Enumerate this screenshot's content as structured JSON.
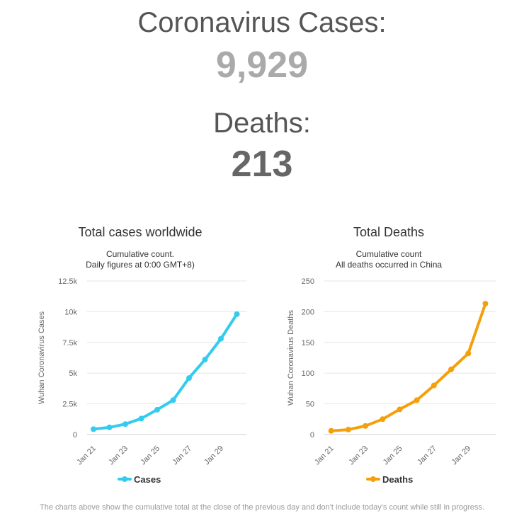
{
  "header": {
    "cases_label": "Coronavirus Cases:",
    "cases_value": "9,929",
    "deaths_label": "Deaths:",
    "deaths_value": "213"
  },
  "footnote": "The charts above show the cumulative total at the close of the previous day and don't include today's count while still in progress.",
  "chart_data": [
    {
      "type": "line",
      "title": "Total cases worldwide",
      "subtitle": [
        "Cumulative count.",
        "Daily figures at 0:00 GMT+8)"
      ],
      "xlabel": "",
      "ylabel": "Wuhan Coronavirus Cases",
      "categories": [
        "Jan 21",
        "Jan 22",
        "Jan 23",
        "Jan 24",
        "Jan 25",
        "Jan 26",
        "Jan 27",
        "Jan 28",
        "Jan 29",
        "Jan 30"
      ],
      "x_tick_labels": [
        "Jan 21",
        "Jan 23",
        "Jan 25",
        "Jan 27",
        "Jan 29"
      ],
      "y_ticks": [
        0,
        2500,
        5000,
        7500,
        10000,
        12500
      ],
      "y_tick_labels": [
        "0",
        "2.5k",
        "5k",
        "7.5k",
        "10k",
        "12.5k"
      ],
      "ylim": [
        0,
        12500
      ],
      "grid": true,
      "legend": "bottom-center",
      "series": [
        {
          "name": "Cases",
          "color": "#33ccf0",
          "values": [
            440,
            580,
            850,
            1300,
            2020,
            2800,
            4600,
            6100,
            7800,
            9800
          ]
        }
      ]
    },
    {
      "type": "line",
      "title": "Total Deaths",
      "subtitle": [
        "Cumulative count",
        "All deaths occurred in China"
      ],
      "xlabel": "",
      "ylabel": "Wuhan Coronavirus Deaths",
      "categories": [
        "Jan 21",
        "Jan 22",
        "Jan 23",
        "Jan 24",
        "Jan 25",
        "Jan 26",
        "Jan 27",
        "Jan 28",
        "Jan 29",
        "Jan 30"
      ],
      "x_tick_labels": [
        "Jan 21",
        "Jan 23",
        "Jan 25",
        "Jan 27",
        "Jan 29"
      ],
      "y_ticks": [
        0,
        50,
        100,
        150,
        200,
        250
      ],
      "y_tick_labels": [
        "0",
        "50",
        "100",
        "150",
        "200",
        "250"
      ],
      "ylim": [
        0,
        250
      ],
      "grid": true,
      "legend": "bottom-center",
      "series": [
        {
          "name": "Deaths",
          "color": "#f5a00a",
          "values": [
            6,
            8,
            14,
            25,
            41,
            56,
            80,
            106,
            132,
            213
          ]
        }
      ]
    }
  ]
}
